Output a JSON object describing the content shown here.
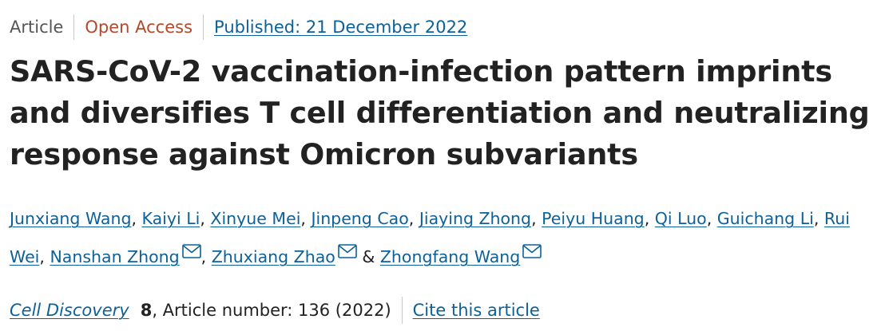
{
  "header": {
    "article_type": "Article",
    "access": "Open Access",
    "published": "Published: 21 December 2022"
  },
  "title": "SARS-CoV-2 vaccination-infection pattern imprints and diversifies T cell differentiation and neutralizing response against Omicron subvariants",
  "authors": {
    "list": [
      "Junxiang Wang",
      "Kaiyi Li",
      "Xinyue Mei",
      "Jinpeng Cao",
      "Jiaying Zhong",
      "Peiyu Huang",
      "Qi Luo",
      "Guichang Li",
      "Rui Wei",
      "Nanshan Zhong",
      "Zhuxiang Zhao",
      "Zhongfang Wang"
    ],
    "separator": ",",
    "final_separator": "&",
    "mail_icon": "envelope-icon"
  },
  "citation": {
    "journal": "Cell Discovery",
    "volume": "8",
    "article_number_text": ", Article number: 136 (2022)",
    "cite_link": "Cite this article"
  },
  "colors": {
    "link": "#0d6198",
    "open_access": "#b5482a",
    "text": "#222222",
    "muted": "#555555",
    "separator": "#c8c8c8"
  }
}
